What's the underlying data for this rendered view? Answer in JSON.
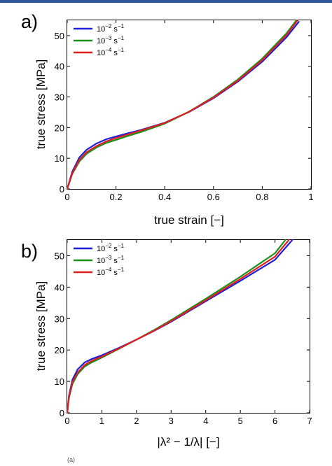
{
  "chart_data": [
    {
      "panel_label": "a)",
      "type": "line",
      "xlabel": "true strain [−]",
      "ylabel": "true stress [MPa]",
      "xlim": [
        0,
        1
      ],
      "ylim": [
        0,
        55
      ],
      "xticks": [
        0,
        0.2,
        0.4,
        0.6,
        0.8,
        1
      ],
      "xtick_labels": [
        "0",
        "0.2",
        "0.4",
        "0.6",
        "0.8",
        "1"
      ],
      "yticks": [
        0,
        10,
        20,
        30,
        40,
        50
      ],
      "ytick_labels": [
        "0",
        "10",
        "20",
        "30",
        "40",
        "50"
      ],
      "legend_position": "top-left",
      "series": [
        {
          "name": "10^-2 s^-1",
          "legend_base": "10",
          "legend_exp": "−2",
          "legend_unit": " s",
          "legend_unit_exp": "−1",
          "color": "#1f1fd6",
          "x": [
            0,
            0.02,
            0.05,
            0.08,
            0.12,
            0.16,
            0.2,
            0.25,
            0.3,
            0.4,
            0.5,
            0.6,
            0.7,
            0.8,
            0.9,
            0.95
          ],
          "y": [
            0,
            5.5,
            10.3,
            12.8,
            14.8,
            16.2,
            17.1,
            18.2,
            19.2,
            21.6,
            25.1,
            29.6,
            35.0,
            41.5,
            49.5,
            54.5
          ]
        },
        {
          "name": "10^-3 s^-1",
          "legend_base": "10",
          "legend_exp": "−3",
          "legend_unit": " s",
          "legend_unit_exp": "−1",
          "color": "#1a8f1a",
          "x": [
            0,
            0.02,
            0.05,
            0.08,
            0.12,
            0.16,
            0.2,
            0.25,
            0.3,
            0.4,
            0.5,
            0.6,
            0.7,
            0.8,
            0.9,
            0.94
          ],
          "y": [
            0,
            4.8,
            9.0,
            11.5,
            13.5,
            15.0,
            16.0,
            17.3,
            18.5,
            21.3,
            25.2,
            30.0,
            35.7,
            42.5,
            50.8,
            55.0
          ]
        },
        {
          "name": "10^-4 s^-1",
          "legend_base": "10",
          "legend_exp": "−4",
          "legend_unit": " s",
          "legend_unit_exp": "−1",
          "color": "#e02020",
          "x": [
            0,
            0.02,
            0.05,
            0.08,
            0.12,
            0.16,
            0.2,
            0.25,
            0.3,
            0.4,
            0.5,
            0.6,
            0.7,
            0.8,
            0.9,
            0.945
          ],
          "y": [
            0,
            5.0,
            9.5,
            12.0,
            14.0,
            15.5,
            16.6,
            17.8,
            19.0,
            21.5,
            25.2,
            29.8,
            35.3,
            42.0,
            50.2,
            55.0
          ]
        }
      ]
    },
    {
      "panel_label": "b)",
      "type": "line",
      "xlabel": "|λ² − 1/λ| [−]",
      "ylabel": "true stress [MPa]",
      "xlim": [
        0,
        7
      ],
      "ylim": [
        0,
        55
      ],
      "xticks": [
        0,
        1,
        2,
        3,
        4,
        5,
        6,
        7
      ],
      "xtick_labels": [
        "0",
        "1",
        "2",
        "3",
        "4",
        "5",
        "6",
        "7"
      ],
      "yticks": [
        0,
        10,
        20,
        30,
        40,
        50
      ],
      "ytick_labels": [
        "0",
        "10",
        "20",
        "30",
        "40",
        "50"
      ],
      "legend_position": "top-left",
      "series": [
        {
          "name": "10^-2 s^-1",
          "legend_base": "10",
          "legend_exp": "−2",
          "legend_unit": " s",
          "legend_unit_exp": "−1",
          "color": "#1f1fd6",
          "x": [
            0,
            0.05,
            0.15,
            0.3,
            0.5,
            0.7,
            1.0,
            1.5,
            2.0,
            2.5,
            3.0,
            4.0,
            5.0,
            6.0,
            6.5
          ],
          "y": [
            0,
            5.5,
            10.5,
            13.8,
            16.0,
            17.1,
            18.3,
            20.7,
            23.3,
            26.0,
            29.0,
            35.5,
            42.0,
            48.7,
            55.0
          ]
        },
        {
          "name": "10^-3 s^-1",
          "legend_base": "10",
          "legend_exp": "−3",
          "legend_unit": " s",
          "legend_unit_exp": "−1",
          "color": "#1a8f1a",
          "x": [
            0,
            0.05,
            0.15,
            0.3,
            0.5,
            0.7,
            1.0,
            1.5,
            2.0,
            2.5,
            3.0,
            4.0,
            5.0,
            6.0,
            6.3
          ],
          "y": [
            0,
            4.8,
            9.2,
            12.3,
            14.7,
            16.0,
            17.6,
            20.4,
            23.3,
            26.3,
            29.5,
            36.3,
            43.3,
            50.8,
            55.0
          ]
        },
        {
          "name": "10^-4 s^-1",
          "legend_base": "10",
          "legend_exp": "−4",
          "legend_unit": " s",
          "legend_unit_exp": "−1",
          "color": "#e02020",
          "x": [
            0,
            0.05,
            0.15,
            0.3,
            0.5,
            0.7,
            1.0,
            1.5,
            2.0,
            2.5,
            3.0,
            4.0,
            5.0,
            6.0,
            6.4
          ],
          "y": [
            0,
            5.0,
            9.7,
            12.8,
            15.2,
            16.5,
            17.9,
            20.5,
            23.3,
            26.1,
            29.2,
            35.8,
            42.6,
            49.7,
            55.0
          ]
        }
      ]
    }
  ],
  "footnote": "(a)"
}
